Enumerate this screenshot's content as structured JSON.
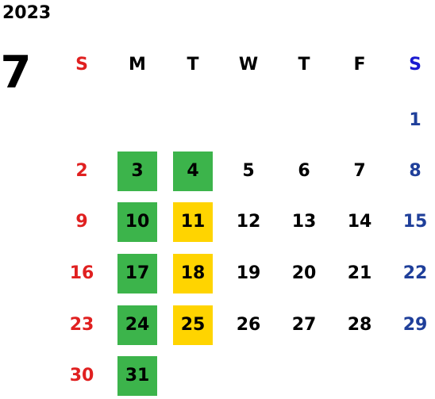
{
  "calendar": {
    "year": "2023",
    "month": "7",
    "weekdays": [
      "S",
      "M",
      "T",
      "W",
      "T",
      "F",
      "S"
    ],
    "weeks": [
      [
        "",
        "",
        "",
        "",
        "",
        "",
        "1"
      ],
      [
        "2",
        "3",
        "4",
        "5",
        "6",
        "7",
        "8"
      ],
      [
        "9",
        "10",
        "11",
        "12",
        "13",
        "14",
        "15"
      ],
      [
        "16",
        "17",
        "18",
        "19",
        "20",
        "21",
        "22"
      ],
      [
        "23",
        "24",
        "25",
        "26",
        "27",
        "28",
        "29"
      ],
      [
        "30",
        "31",
        "",
        "",
        "",
        "",
        ""
      ]
    ],
    "highlights": {
      "green": [
        "3",
        "4",
        "10",
        "17",
        "24",
        "31"
      ],
      "yellow": [
        "11",
        "18",
        "25"
      ]
    }
  },
  "colors": {
    "sunday": "#e02020",
    "saturday": "#1f3f9a",
    "weekday": "#000000",
    "green_fill": "#3cb44b",
    "yellow_fill": "#ffd400"
  }
}
